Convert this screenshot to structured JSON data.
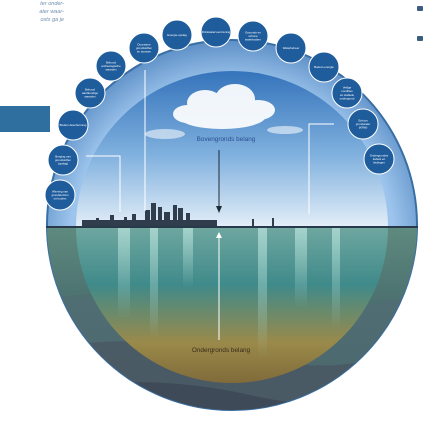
{
  "corner_text": [
    "ter onder-",
    "ater waar-",
    "osts ga je"
  ],
  "labels": {
    "above": "Bovengronds belang",
    "below": "Ondergronds belang"
  },
  "bubbles": [
    "Winning van grondstof-fen uit bodem",
    "Berging van grondstoffen (opslag)",
    "Bodem-bescherming",
    "Behoud aardkundige waarden",
    "Behoud archeologische waarden",
    "Duurzame grondstoffen en bouwen",
    "Energie-opslag",
    "Drinkwatervoorziening",
    "Gezonde en schone waterbodem",
    "Waterbeheer",
    "Bodem-energie",
    "Veilige condities en stabiele ondergrond",
    "Schoon grondwater (KRW)",
    "Ondergrondse kabels en leidingen"
  ],
  "colors": {
    "bubble": "#1f5c9c",
    "ring": "#7eaee0",
    "ring_edge": "#3a6fa5",
    "text_above": "#2a4f8f",
    "text_below": "#3a2a1a"
  }
}
